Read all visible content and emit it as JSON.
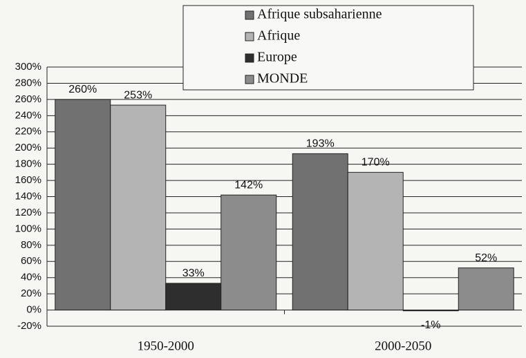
{
  "chart_data": {
    "type": "bar",
    "categories": [
      "1950-2000",
      "2000-2050"
    ],
    "series": [
      {
        "name": "Afrique subsaharienne",
        "color": "#717171",
        "values": [
          260,
          193
        ],
        "value_labels": [
          "260%",
          "193%"
        ]
      },
      {
        "name": "Afrique",
        "color": "#b4b4b4",
        "values": [
          253,
          170
        ],
        "value_labels": [
          "253%",
          "170%"
        ]
      },
      {
        "name": "Europe",
        "color": "#2e2e2e",
        "values": [
          33,
          -1
        ],
        "value_labels": [
          "33%",
          "-1%"
        ]
      },
      {
        "name": "MONDE",
        "color": "#8c8c8c",
        "values": [
          142,
          52
        ],
        "value_labels": [
          "142%",
          "52%"
        ]
      }
    ],
    "ylim": [
      -20,
      300
    ],
    "yticks": [
      {
        "value": -20,
        "label": "-20%"
      },
      {
        "value": 0,
        "label": "0%"
      },
      {
        "value": 20,
        "label": "20%"
      },
      {
        "value": 40,
        "label": "40%"
      },
      {
        "value": 60,
        "label": "60%"
      },
      {
        "value": 80,
        "label": "80%"
      },
      {
        "value": 100,
        "label": "100%"
      },
      {
        "value": 120,
        "label": "120%"
      },
      {
        "value": 140,
        "label": "140%"
      },
      {
        "value": 160,
        "label": "160%"
      },
      {
        "value": 180,
        "label": "180%"
      },
      {
        "value": 200,
        "label": "200%"
      },
      {
        "value": 220,
        "label": "220%"
      },
      {
        "value": 240,
        "label": "240%"
      },
      {
        "value": 260,
        "label": "260%"
      },
      {
        "value": 280,
        "label": "280%"
      },
      {
        "value": 300,
        "label": "300%"
      }
    ],
    "grid": true
  }
}
